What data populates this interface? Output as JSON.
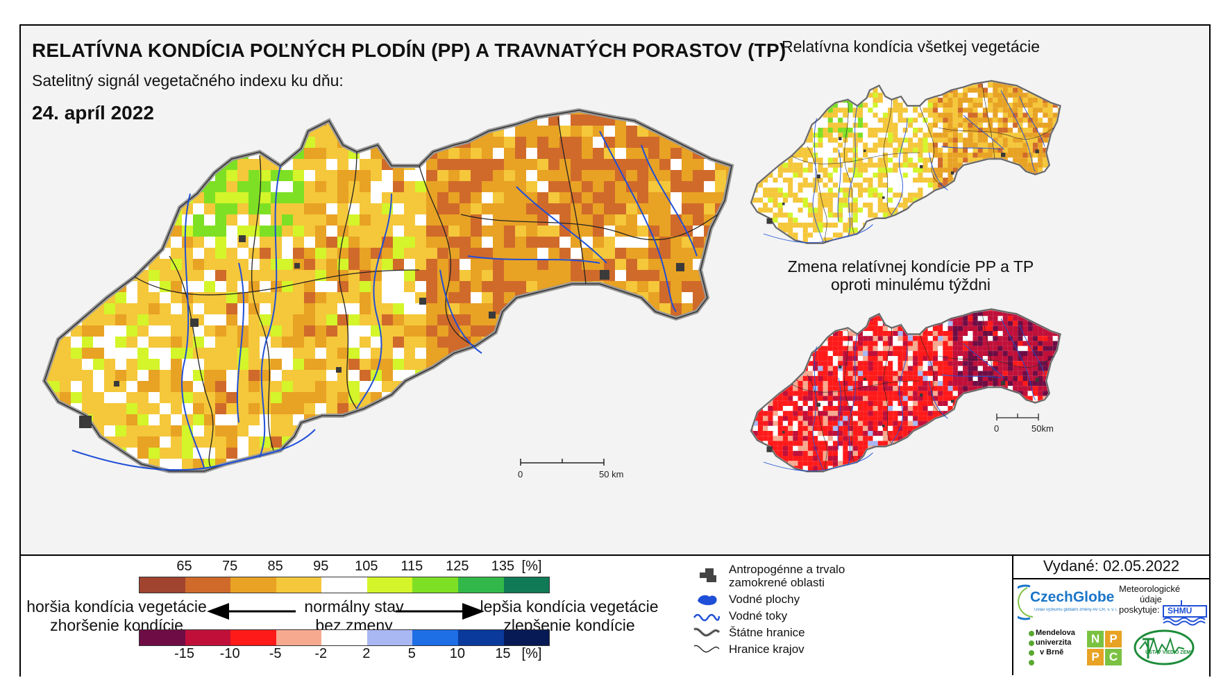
{
  "title": "RELATÍVNA KONDÍCIA POĽNÝCH PLODÍN (PP) A TRAVNATÝCH PORASTOV (TP)",
  "subtitle": "Satelitný signál vegetačného indexu ku dňu:",
  "date": "24. apríl 2022",
  "right_panels": {
    "top_title": "Relatívna kondícia všetkej vegetácie",
    "bottom_title_line1": "Zmena relatívnej kondície PP a TP",
    "bottom_title_line2": "oproti minulému týždni"
  },
  "scale_bars": {
    "main": {
      "start": "0",
      "end": "50 km"
    },
    "small": {
      "start": "0",
      "end": "50km"
    }
  },
  "legend": {
    "condition_ticks": [
      "65",
      "75",
      "85",
      "95",
      "105",
      "115",
      "125",
      "135"
    ],
    "condition_unit": "[%]",
    "condition_colors": [
      "#a0432f",
      "#d06a2a",
      "#e8a224",
      "#f5c73a",
      "#ffffff",
      "#d3f52a",
      "#7ee024",
      "#32b84a",
      "#107a56"
    ],
    "change_ticks": [
      "-15",
      "-10",
      "-5",
      "-2",
      "2",
      "5",
      "10",
      "15"
    ],
    "change_unit": "[%]",
    "change_colors": [
      "#6e0d45",
      "#c0103a",
      "#ff1a1a",
      "#f7a98f",
      "#ffffff",
      "#a9b8f3",
      "#1e6ee6",
      "#0a3a9c",
      "#071a55"
    ],
    "left_line1": "horšia kondícia vegetácie",
    "left_line2": "zhoršenie kondície",
    "center_line1": "normálny stav",
    "center_line2": "bez zmeny",
    "right_line1": "lepšia kondícia vegetácie",
    "right_line2": "zlepšenie kondície"
  },
  "symbols": {
    "antropogenne_line1": "Antropogénne a trvalo",
    "antropogenne_line2": "zamokrené oblasti",
    "vodne_plochy": "Vodné plochy",
    "vodne_toky": "Vodné toky",
    "statne_hranice": "Štátne hranice",
    "hranice_krajov": "Hranice krajov"
  },
  "issued": "Vydané: 02.05.2022",
  "logos": {
    "czechglobe": "CzechGlobe",
    "czechglobe_small": "Ústav výzkumu globální změny AV ČR, v. v. i.",
    "meteo_line1": "Meteorologické",
    "meteo_line2": "údaje",
    "meteo_line3": "poskytuje:",
    "shmu": "SHMÚ",
    "mendelu_line1": "Mendelova",
    "mendelu_line2": "univerzita",
    "mendelu_line3": "v Brně",
    "nppc_letters": [
      "N",
      "P",
      "P",
      "C"
    ],
    "uvz": "ÚSTAV VIED O ZEMI"
  },
  "colors": {
    "water": "#1f4fd6",
    "border": "#555555",
    "urban": "#3a3a3a"
  }
}
